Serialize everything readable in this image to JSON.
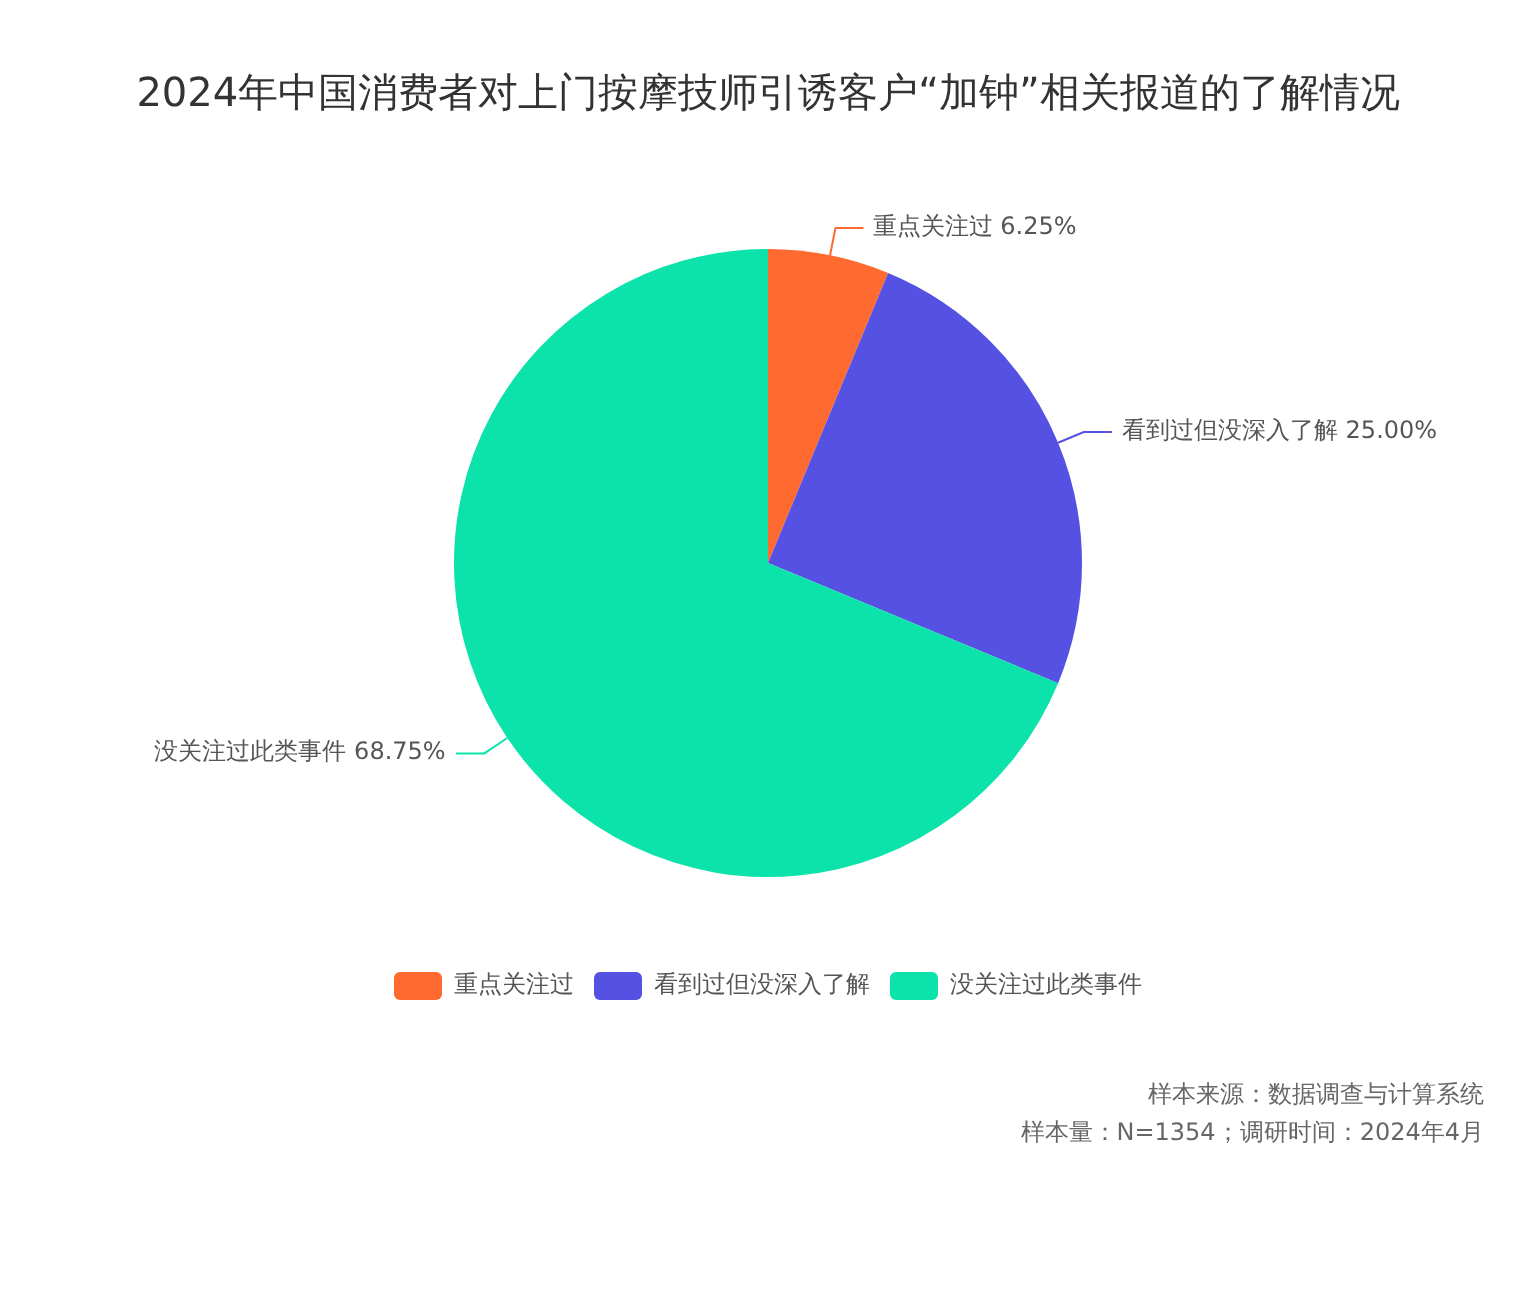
{
  "chart_data": {
    "type": "pie",
    "title": "2024年中国消费者对上门按摩技师引诱客户“加钟”相关报道的了解情况",
    "categories": [
      "重点关注过",
      "看到过但没深入了解",
      "没关注过此类事件"
    ],
    "values": [
      6.25,
      25.0,
      68.75
    ],
    "value_labels": [
      "6.25%",
      "25.00%",
      "68.75%"
    ],
    "colors": [
      "#ff6a30",
      "#5551e3",
      "#0ce3ab"
    ],
    "legend": "bottom",
    "annotations": [
      "样本来源：数据调查与计算系统",
      "样本量：N=1354；调研时间：2024年4月"
    ]
  }
}
